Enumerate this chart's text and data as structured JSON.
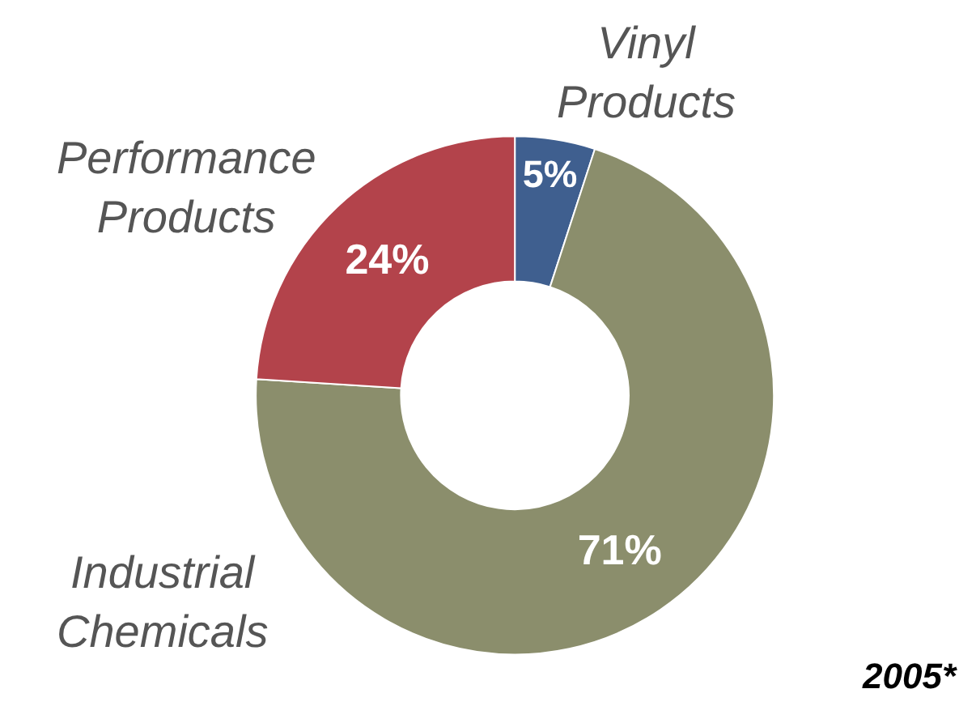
{
  "chart_data": {
    "type": "donut",
    "categories": [
      "Vinyl Products",
      "Industrial Chemicals",
      "Performance Products"
    ],
    "values": [
      5,
      71,
      24
    ],
    "value_labels": [
      "5%",
      "71%",
      "24%"
    ],
    "colors": [
      "#3f5f8f",
      "#8b8e6c",
      "#b3434b"
    ],
    "annotations": [
      "2005*"
    ],
    "legend": false
  }
}
